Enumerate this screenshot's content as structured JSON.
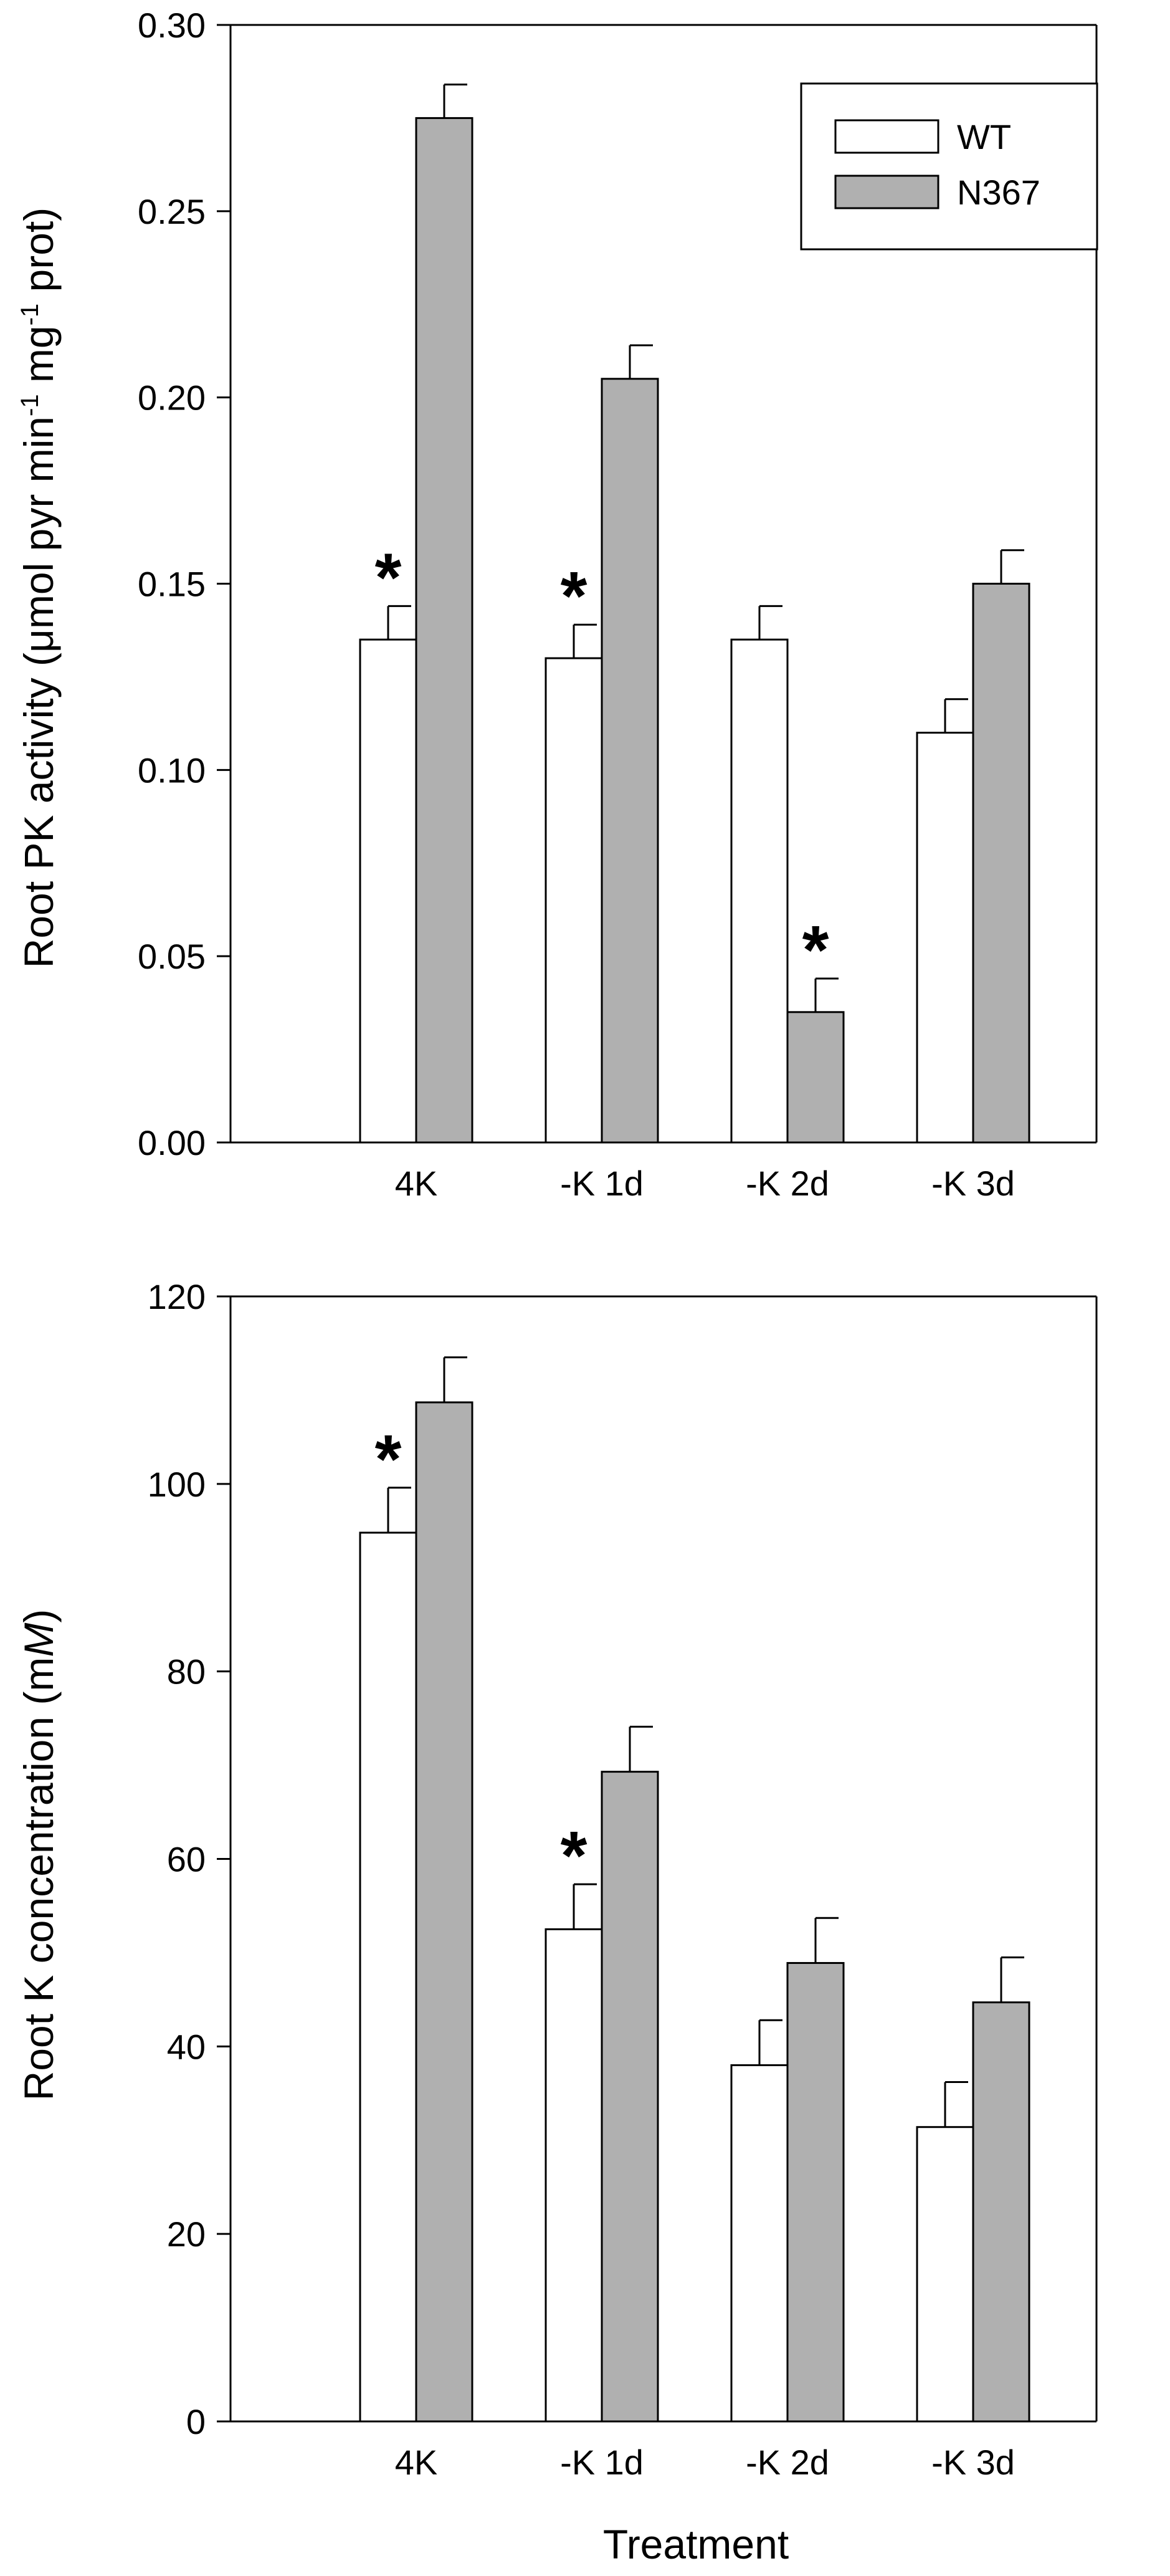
{
  "colors": {
    "wt": "#ffffff",
    "n367": "#b0b0b0",
    "stroke": "#000000"
  },
  "xlabel": "Treatment",
  "legend": {
    "position": "top-right",
    "items": [
      "WT",
      "N367"
    ]
  },
  "chart_data": [
    {
      "type": "bar",
      "categories": [
        "4K",
        "-K 1d",
        "-K 2d",
        "-K 3d"
      ],
      "series": [
        {
          "name": "WT",
          "values": [
            0.135,
            0.13,
            0.135,
            0.11
          ],
          "errors": [
            0.009,
            0.009,
            0.009,
            0.009
          ],
          "significant": [
            true,
            true,
            false,
            false
          ]
        },
        {
          "name": "N367",
          "values": [
            0.275,
            0.205,
            0.035,
            0.15
          ],
          "errors": [
            0.009,
            0.009,
            0.009,
            0.009
          ],
          "significant": [
            false,
            false,
            true,
            false
          ]
        }
      ],
      "ylabel": {
        "pre": "Root PK activity (μmol pyr min",
        "exp1": "-1",
        "mid": " mg",
        "exp2": "-1",
        "post": " prot)"
      },
      "ylim": [
        0,
        0.3
      ],
      "yticks": [
        "0.00",
        "0.05",
        "0.10",
        "0.15",
        "0.20",
        "0.25",
        "0.30"
      ],
      "legend": [
        "WT",
        "N367"
      ],
      "grid": false
    },
    {
      "type": "bar",
      "categories": [
        "4K",
        "-K 1d",
        "-K 2d",
        "-K 3d"
      ],
      "series": [
        {
          "name": "WT",
          "values": [
            94.8,
            52.5,
            38,
            31.4
          ],
          "errors": [
            4.8,
            4.8,
            4.8,
            4.8
          ],
          "significant": [
            true,
            true,
            false,
            false
          ]
        },
        {
          "name": "N367",
          "values": [
            108.7,
            69.3,
            48.9,
            44.7
          ],
          "errors": [
            4.8,
            4.8,
            4.8,
            4.8
          ],
          "significant": [
            false,
            false,
            false,
            false
          ]
        }
      ],
      "ylabel": {
        "pre": "Root K concentration (m",
        "italic": "M",
        "post": ")"
      },
      "ylim": [
        0,
        120
      ],
      "yticks": [
        "0",
        "20",
        "40",
        "60",
        "80",
        "100",
        "120"
      ],
      "grid": false
    }
  ]
}
